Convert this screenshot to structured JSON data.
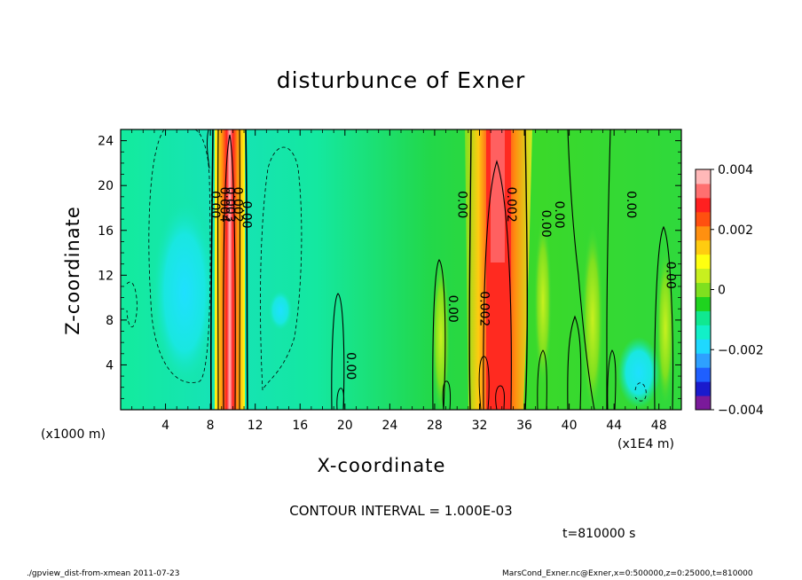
{
  "chart_data": {
    "type": "heatmap",
    "title": "disturbunce of Exner",
    "xlabel": "X-coordinate",
    "ylabel": "Z-coordinate",
    "x_unit_left": "(x1000 m)",
    "x_unit_right": "(x1E4 m)",
    "xlim": [
      0,
      50
    ],
    "ylim": [
      0,
      25
    ],
    "x_ticks": [
      4,
      8,
      12,
      16,
      20,
      24,
      28,
      32,
      36,
      40,
      44,
      48
    ],
    "y_ticks": [
      4,
      8,
      12,
      16,
      20,
      24
    ],
    "colorbar": {
      "min": -0.004,
      "max": 0.004,
      "tick_values": [
        0.004,
        0.002,
        0,
        -0.002,
        -0.004
      ],
      "tick_labels": [
        "0.004",
        "0.002",
        "0",
        "−0.002",
        "−0.004"
      ],
      "colors": [
        "#7a1a9a",
        "#1a1acd",
        "#1f5fff",
        "#2ea0ff",
        "#1fd8ff",
        "#12f0c8",
        "#10e890",
        "#1fd31f",
        "#7fe01f",
        "#c8f01f",
        "#ffff10",
        "#ffcc10",
        "#ff9010",
        "#ff5010",
        "#ff2020",
        "#ff7070",
        "#ffb8b8"
      ]
    },
    "contour_interval": "CONTOUR INTERVAL = 1.000E-03",
    "contour_labels": [
      {
        "text": "0.00",
        "x": 8.4,
        "z": 18.3
      },
      {
        "text": "0.004",
        "x": 9.2,
        "z": 18.3
      },
      {
        "text": "0.003",
        "x": 9.75,
        "z": 18.3
      },
      {
        "text": "0.002",
        "x": 10.4,
        "z": 18.3
      },
      {
        "text": "0.00",
        "x": 11.2,
        "z": 17.4
      },
      {
        "text": "0.00",
        "x": 30.4,
        "z": 18.3
      },
      {
        "text": "0.002",
        "x": 34.8,
        "z": 18.3
      },
      {
        "text": "0.00",
        "x": 37.9,
        "z": 16.6
      },
      {
        "text": "0.00",
        "x": 39.1,
        "z": 17.4
      },
      {
        "text": "0.00",
        "x": 45.5,
        "z": 18.3
      },
      {
        "text": "0.00",
        "x": 49.0,
        "z": 12.0
      },
      {
        "text": "0.00",
        "x": 29.6,
        "z": 9.0
      },
      {
        "text": "0.002",
        "x": 32.4,
        "z": 9.0
      },
      {
        "text": "0.00",
        "x": 20.5,
        "z": 3.9
      }
    ],
    "time": "t=810000 s",
    "footer_left": "./gpview_dist-from-xmean   2011-07-23",
    "footer_right": "MarsCond_Exner.nc@Exner,x=0:500000,z=0:25000,t=810000"
  }
}
